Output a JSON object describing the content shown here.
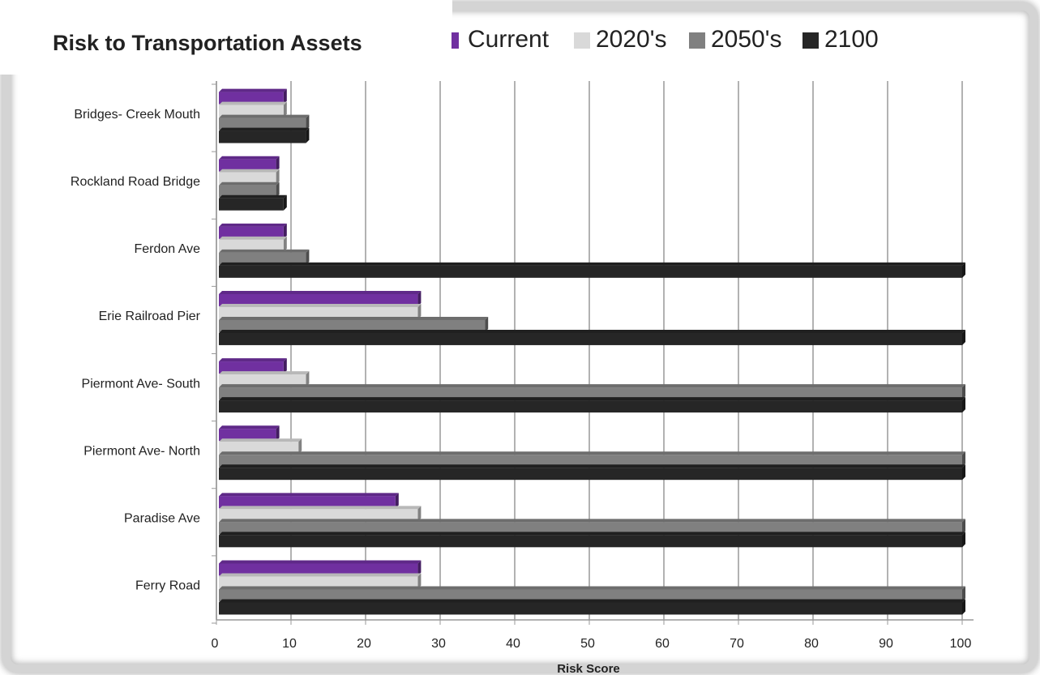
{
  "chart_data": {
    "type": "bar",
    "orientation": "horizontal",
    "title": "Risk to Transportation Assets",
    "x_label": "Risk Score",
    "categories": [
      "Bridges- Creek Mouth",
      "Rockland Road Bridge",
      "Ferdon Ave",
      "Erie Railroad Pier",
      "Piermont Ave- South",
      "Piermont Ave- North",
      "Paradise Ave",
      "Ferry Road"
    ],
    "series": [
      {
        "name": "Current",
        "color": "#7030a0",
        "values": [
          9,
          8,
          9,
          27,
          9,
          8,
          24,
          27
        ]
      },
      {
        "name": "2020's",
        "color": "#d9d9d9",
        "values": [
          9,
          8,
          9,
          27,
          12,
          11,
          27,
          27
        ]
      },
      {
        "name": "2050's",
        "color": "#808080",
        "values": [
          12,
          8,
          12,
          36,
          100,
          100,
          100,
          100
        ]
      },
      {
        "name": "2100",
        "color": "#262626",
        "values": [
          12,
          9,
          100,
          100,
          100,
          100,
          100,
          100
        ]
      }
    ],
    "xlim": [
      0,
      100
    ],
    "xticks": [
      0,
      10,
      20,
      30,
      40,
      50,
      60,
      70,
      80,
      90,
      100
    ],
    "grid": true
  }
}
